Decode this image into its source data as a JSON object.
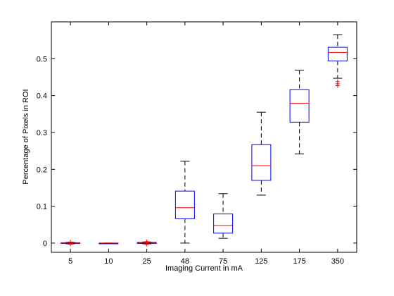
{
  "chart_data": {
    "type": "box",
    "title": "",
    "xlabel": "Imaging Current in mA",
    "ylabel": "Percentage of Pixels in ROI",
    "categories": [
      "5",
      "10",
      "25",
      "48",
      "75",
      "125",
      "175",
      "350"
    ],
    "ylim": [
      -0.025,
      0.6
    ],
    "yticks": [
      0,
      0.1,
      0.2,
      0.3,
      0.4,
      0.5
    ],
    "ytick_labels": [
      "0",
      "0.1",
      "0.2",
      "0.3",
      "0.4",
      "0.5"
    ],
    "grid": false,
    "legend": "none",
    "boxes": [
      {
        "label": "5",
        "whisker_low": -0.002,
        "q1": -0.001,
        "median": 0.0,
        "q3": 0.001,
        "whisker_high": 0.002,
        "outliers": [
          0.003,
          -0.003
        ]
      },
      {
        "label": "10",
        "whisker_low": 0.0,
        "q1": 0.0,
        "median": 0.0,
        "q3": 0.0,
        "whisker_high": 0.0,
        "outliers": []
      },
      {
        "label": "25",
        "whisker_low": -0.002,
        "q1": -0.001,
        "median": 0.0,
        "q3": 0.002,
        "whisker_high": 0.003,
        "outliers": [
          0.004,
          -0.003
        ]
      },
      {
        "label": "48",
        "whisker_low": 0.0,
        "q1": 0.066,
        "median": 0.096,
        "q3": 0.141,
        "whisker_high": 0.222,
        "outliers": []
      },
      {
        "label": "75",
        "whisker_low": 0.013,
        "q1": 0.027,
        "median": 0.048,
        "q3": 0.079,
        "whisker_high": 0.134,
        "outliers": []
      },
      {
        "label": "125",
        "whisker_low": 0.13,
        "q1": 0.17,
        "median": 0.21,
        "q3": 0.267,
        "whisker_high": 0.355,
        "outliers": []
      },
      {
        "label": "175",
        "whisker_low": 0.242,
        "q1": 0.328,
        "median": 0.379,
        "q3": 0.416,
        "whisker_high": 0.469,
        "outliers": []
      },
      {
        "label": "350",
        "whisker_low": 0.447,
        "q1": 0.494,
        "median": 0.517,
        "q3": 0.531,
        "whisker_high": 0.565,
        "outliers": [
          0.438,
          0.432,
          0.427
        ]
      }
    ],
    "colors": {
      "box": "#0000ff",
      "median": "#ff0000",
      "whisker": "#000000",
      "outlier": "#ff0000",
      "axes": "#000000"
    }
  }
}
